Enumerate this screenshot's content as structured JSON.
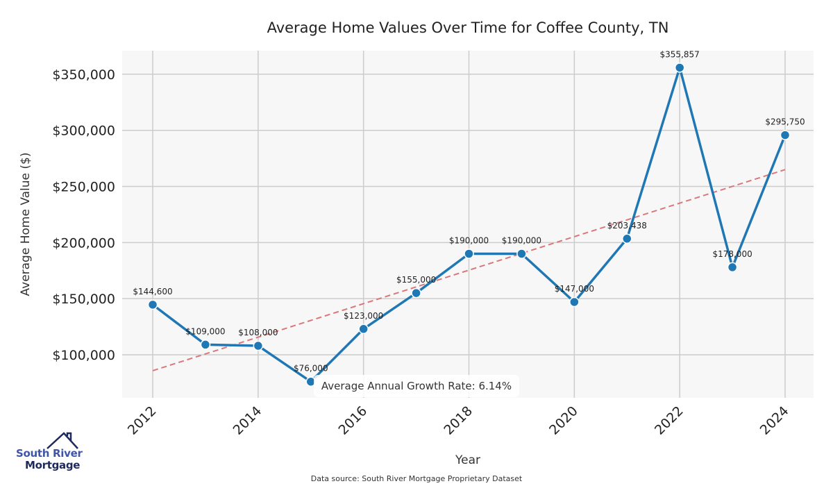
{
  "chart_data": {
    "type": "line",
    "title": "Average Home Values Over Time for Coffee County, TN",
    "xlabel": "Year",
    "ylabel": "Average Home Value ($)",
    "x": [
      2012,
      2013,
      2014,
      2015,
      2016,
      2017,
      2018,
      2019,
      2020,
      2021,
      2022,
      2023,
      2024
    ],
    "series": [
      {
        "name": "Average Home Value",
        "color": "#1f77b4",
        "values": [
          144600,
          109000,
          108000,
          76000,
          123000,
          155000,
          190000,
          190000,
          147000,
          203438,
          355857,
          178000,
          295750
        ]
      }
    ],
    "data_labels": [
      "$144,600",
      "$109,000",
      "$108,000",
      "$76,000",
      "$123,000",
      "$155,000",
      "$190,000",
      "$190,000",
      "$147,000",
      "$203,438",
      "$355,857",
      "$178,000",
      "$295,750"
    ],
    "trendline": {
      "color": "#d9777a",
      "style": "dashed",
      "start": [
        2012,
        85800
      ],
      "end": [
        2024,
        265000
      ]
    },
    "xticks": [
      2012,
      2014,
      2016,
      2018,
      2020,
      2022,
      2024
    ],
    "xtick_labels": [
      "2012",
      "2014",
      "2016",
      "2018",
      "2020",
      "2022",
      "2024"
    ],
    "yticks": [
      100000,
      150000,
      200000,
      250000,
      300000,
      350000
    ],
    "ytick_labels": [
      "$100,000",
      "$150,000",
      "$200,000",
      "$250,000",
      "$300,000",
      "$350,000"
    ],
    "xlim": [
      2011.42,
      2024.54
    ],
    "ylim": [
      61600,
      371000
    ],
    "grid": true,
    "annotation": "Average Annual Growth Rate: 6.14%",
    "source": "Data source: South River Mortgage Proprietary Dataset"
  },
  "logo": {
    "line1": "South River",
    "line2": "Mortgage"
  }
}
